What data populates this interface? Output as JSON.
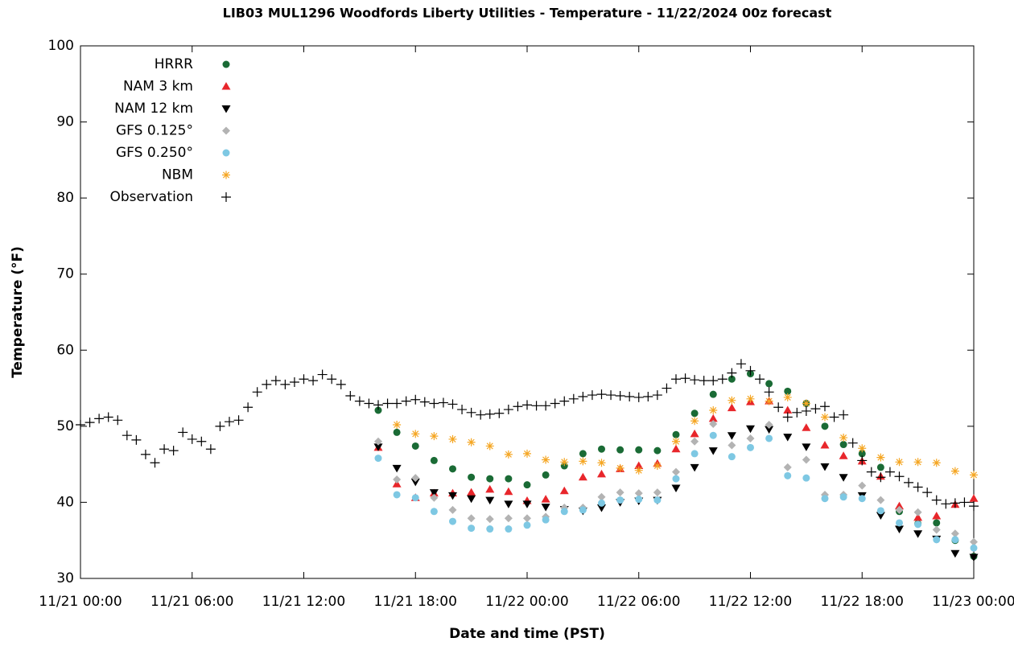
{
  "chart_data": {
    "type": "scatter",
    "title": "LIB03 MUL1296 Woodfords Liberty Utilities - Temperature - 11/22/2024 00z forecast",
    "xlabel": "Date and time (PST)",
    "ylabel": "Temperature (°F)",
    "xlim": [
      "11/21 00:00",
      "11/23 00:00"
    ],
    "xticks": [
      "11/21 00:00",
      "11/21 06:00",
      "11/21 12:00",
      "11/21 18:00",
      "11/22 00:00",
      "11/22 06:00",
      "11/22 12:00",
      "11/22 18:00",
      "11/23 00:00"
    ],
    "ylim": [
      30,
      100
    ],
    "yticks": [
      30,
      40,
      50,
      60,
      70,
      80,
      90,
      100
    ],
    "legend": "upper left",
    "x": [
      "11/21 16:00",
      "11/21 17:00",
      "11/21 18:00",
      "11/21 19:00",
      "11/21 20:00",
      "11/21 21:00",
      "11/21 22:00",
      "11/21 23:00",
      "11/22 00:00",
      "11/22 01:00",
      "11/22 02:00",
      "11/22 03:00",
      "11/22 04:00",
      "11/22 05:00",
      "11/22 06:00",
      "11/22 07:00",
      "11/22 08:00",
      "11/22 09:00",
      "11/22 10:00",
      "11/22 11:00",
      "11/22 12:00",
      "11/22 13:00",
      "11/22 14:00",
      "11/22 15:00",
      "11/22 16:00",
      "11/22 17:00",
      "11/22 18:00",
      "11/22 19:00",
      "11/22 20:00",
      "11/22 21:00",
      "11/22 22:00",
      "11/22 23:00",
      "11/23 00:00"
    ],
    "series": [
      {
        "name": "HRRR",
        "color": "#1a6b35",
        "marker": "circle",
        "values": [
          52.1,
          49.2,
          47.4,
          45.5,
          44.4,
          43.3,
          43.1,
          43.1,
          42.3,
          43.6,
          44.8,
          46.4,
          47,
          46.9,
          46.9,
          46.8,
          48.9,
          51.7,
          54.2,
          56.2,
          56.9,
          55.6,
          54.6,
          53,
          50,
          47.6,
          46.4,
          44.6,
          38.8,
          37.2,
          37.3,
          35,
          32.9
        ]
      },
      {
        "name": "NAM 3 km",
        "color": "#e8262b",
        "marker": "triangle-up",
        "values": [
          47.2,
          42.4,
          40.6,
          41.2,
          41.2,
          41.3,
          41.7,
          41.4,
          40.2,
          40.4,
          41.5,
          43.3,
          43.7,
          44.4,
          44.8,
          45.1,
          47,
          49,
          51,
          52.4,
          53.2,
          53.3,
          52.1,
          49.8,
          47.5,
          46.1,
          45.4,
          43.4,
          39.5,
          38,
          38.2,
          39.7,
          40.5
        ]
      },
      {
        "name": "NAM 12 km",
        "color": "#000000",
        "marker": "triangle-down",
        "values": [
          47.3,
          44.5,
          42.7,
          41.3,
          40.9,
          40.5,
          40.3,
          39.8,
          39.8,
          39.4,
          39.1,
          38.9,
          39.3,
          40,
          40.2,
          40.3,
          41.9,
          44.6,
          46.8,
          48.8,
          49.7,
          49.6,
          48.6,
          47.3,
          44.7,
          43.3,
          40.9,
          38.3,
          36.5,
          35.9,
          35.2,
          33.3,
          32.8
        ]
      },
      {
        "name": "GFS 0.125°",
        "color": "#b3b3b3",
        "marker": "diamond",
        "values": [
          48,
          43,
          43.2,
          40.6,
          39,
          37.9,
          37.8,
          37.9,
          37.9,
          38.1,
          39.3,
          39.3,
          40.7,
          41.3,
          41.2,
          41.3,
          44,
          48,
          50.3,
          47.5,
          48.4,
          50.2,
          44.6,
          45.6,
          41,
          41,
          42.2,
          40.3,
          39,
          38.7,
          36.4,
          35.9,
          34.8
        ]
      },
      {
        "name": "GFS 0.250°",
        "color": "#7ec8e3",
        "marker": "circle",
        "values": [
          45.8,
          41,
          40.6,
          38.8,
          37.5,
          36.6,
          36.5,
          36.5,
          37,
          37.7,
          38.8,
          39,
          39.9,
          40.3,
          40.4,
          40.3,
          43.1,
          46.4,
          48.8,
          46,
          47.2,
          48.4,
          43.5,
          43.2,
          40.5,
          40.7,
          40.5,
          38.9,
          37.3,
          37.1,
          35.1,
          35.1,
          34
        ]
      },
      {
        "name": "NBM",
        "color": "#f5a623",
        "marker": "asterisk",
        "values": [
          null,
          50.2,
          49,
          48.7,
          48.3,
          47.9,
          47.4,
          46.3,
          46.4,
          45.6,
          45.3,
          45.4,
          45.2,
          44.5,
          44.2,
          44.8,
          48,
          50.7,
          52.1,
          53.4,
          53.6,
          53.3,
          53.8,
          53,
          51.2,
          48.5,
          47.1,
          45.9,
          45.3,
          45.3,
          45.2,
          44.1,
          43.6
        ]
      },
      {
        "name": "Observation",
        "color": "#000000",
        "marker": "plus",
        "x": [
          "11/21 00:00",
          "11/21 00:30",
          "11/21 01:00",
          "11/21 01:30",
          "11/21 02:00",
          "11/21 02:30",
          "11/21 03:00",
          "11/21 03:30",
          "11/21 04:00",
          "11/21 04:30",
          "11/21 05:00",
          "11/21 05:30",
          "11/21 06:00",
          "11/21 06:30",
          "11/21 07:00",
          "11/21 07:30",
          "11/21 08:00",
          "11/21 08:30",
          "11/21 09:00",
          "11/21 09:30",
          "11/21 10:00",
          "11/21 10:30",
          "11/21 11:00",
          "11/21 11:30",
          "11/21 12:00",
          "11/21 12:30",
          "11/21 13:00",
          "11/21 13:30",
          "11/21 14:00",
          "11/21 14:30",
          "11/21 15:00",
          "11/21 15:30",
          "11/21 16:00",
          "11/21 16:30",
          "11/21 17:00",
          "11/21 17:30",
          "11/21 18:00",
          "11/21 18:30",
          "11/21 19:00",
          "11/21 19:30",
          "11/21 20:00",
          "11/21 20:30",
          "11/21 21:00",
          "11/21 21:30",
          "11/21 22:00",
          "11/21 22:30",
          "11/21 23:00",
          "11/21 23:30",
          "11/22 00:00",
          "11/22 00:30",
          "11/22 01:00",
          "11/22 01:30",
          "11/22 02:00",
          "11/22 02:30",
          "11/22 03:00",
          "11/22 03:30",
          "11/22 04:00",
          "11/22 04:30",
          "11/22 05:00",
          "11/22 05:30",
          "11/22 06:00",
          "11/22 06:30",
          "11/22 07:00",
          "11/22 07:30",
          "11/22 08:00",
          "11/22 08:30",
          "11/22 09:00",
          "11/22 09:30",
          "11/22 10:00",
          "11/22 10:30",
          "11/22 11:00",
          "11/22 11:30",
          "11/22 12:00",
          "11/22 12:30",
          "11/22 13:00",
          "11/22 13:30",
          "11/22 14:00",
          "11/22 14:30",
          "11/22 15:00",
          "11/22 15:30",
          "11/22 16:00",
          "11/22 16:30",
          "11/22 17:00",
          "11/22 17:30",
          "11/22 18:00",
          "11/22 18:30",
          "11/22 19:00",
          "11/22 19:30",
          "11/22 20:00",
          "11/22 20:30",
          "11/22 21:00",
          "11/22 21:30",
          "11/22 22:00",
          "11/22 22:30",
          "11/22 23:00",
          "11/22 23:30",
          "11/23 00:00"
        ],
        "values": [
          50.2,
          50.5,
          51,
          51.2,
          50.8,
          48.8,
          48.2,
          46.3,
          45.2,
          47,
          46.8,
          49.2,
          48.3,
          48,
          47,
          50,
          50.6,
          50.8,
          52.5,
          54.5,
          55.5,
          56,
          55.5,
          55.8,
          56.2,
          56,
          56.8,
          56.2,
          55.5,
          54,
          53.3,
          53,
          52.8,
          53,
          53,
          53.3,
          53.5,
          53.2,
          53,
          53.1,
          52.9,
          52.2,
          51.8,
          51.5,
          51.6,
          51.7,
          52.2,
          52.6,
          52.8,
          52.7,
          52.7,
          53,
          53.3,
          53.6,
          53.9,
          54.1,
          54.2,
          54.1,
          54,
          53.9,
          53.8,
          53.9,
          54.1,
          55,
          56.2,
          56.3,
          56.1,
          56,
          56,
          56.2,
          57,
          58.2,
          57.3,
          56.2,
          54.5,
          52.5,
          51.2,
          51.8,
          52,
          52.3,
          52.6,
          51.2,
          51.5,
          47.8,
          45.5,
          44,
          43.3,
          44,
          43.4,
          42.6,
          42,
          41.3,
          40.3,
          39.8,
          39.9,
          40,
          39.5
        ]
      }
    ]
  }
}
